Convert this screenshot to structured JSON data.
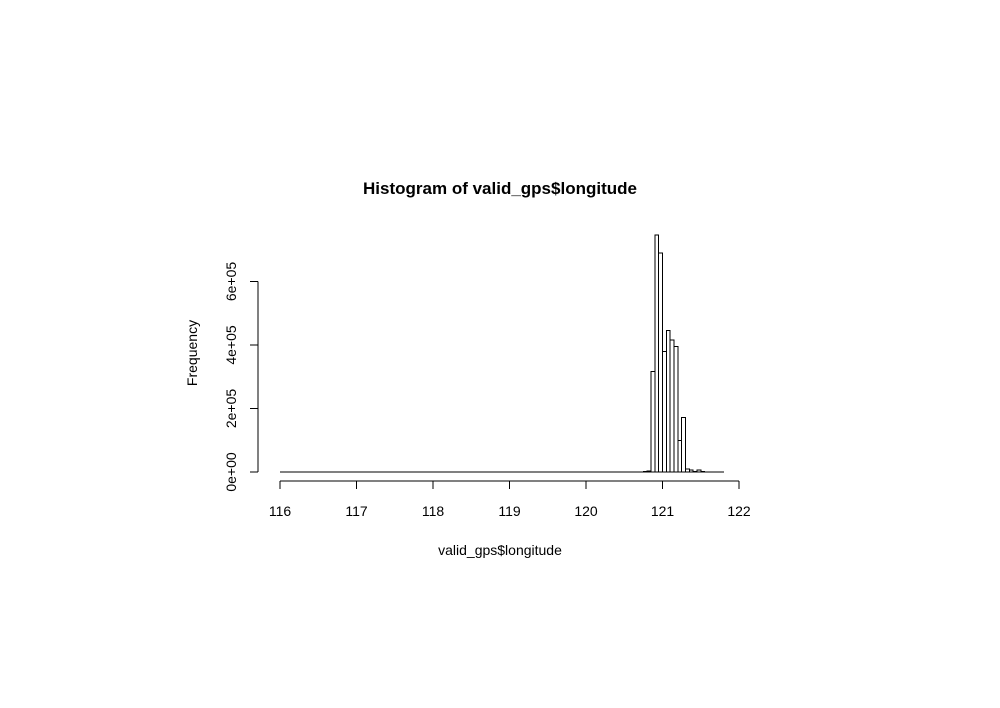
{
  "chart_data": {
    "type": "bar",
    "subtype": "histogram",
    "title": "Histogram of valid_gps$longitude",
    "xlabel": "valid_gps$longitude",
    "ylabel": "Frequency",
    "xlim": [
      116,
      122
    ],
    "ylim": [
      0,
      700000
    ],
    "x_ticks": [
      116,
      117,
      118,
      119,
      120,
      121,
      122
    ],
    "x_tick_labels": [
      "116",
      "117",
      "118",
      "119",
      "120",
      "121",
      "122"
    ],
    "y_ticks": [
      0,
      200000,
      400000,
      600000
    ],
    "y_tick_labels": [
      "0e+00",
      "2e+05",
      "4e+05",
      "6e+05"
    ],
    "grid": false,
    "bin_width": 0.05,
    "bin_start": 116.0,
    "bin_end": 121.8,
    "bins": [
      {
        "start": 120.7,
        "end": 120.75,
        "value": 300
      },
      {
        "start": 120.75,
        "end": 120.8,
        "value": 800
      },
      {
        "start": 120.8,
        "end": 120.85,
        "value": 3000
      },
      {
        "start": 120.85,
        "end": 120.9,
        "value": 317000
      },
      {
        "start": 120.9,
        "end": 120.95,
        "value": 747000
      },
      {
        "start": 120.95,
        "end": 121.0,
        "value": 690000
      },
      {
        "start": 121.0,
        "end": 121.05,
        "value": 380000
      },
      {
        "start": 121.05,
        "end": 121.1,
        "value": 445000
      },
      {
        "start": 121.1,
        "end": 121.15,
        "value": 415000
      },
      {
        "start": 121.15,
        "end": 121.2,
        "value": 395000
      },
      {
        "start": 121.2,
        "end": 121.25,
        "value": 99000
      },
      {
        "start": 121.25,
        "end": 121.3,
        "value": 172000
      },
      {
        "start": 121.3,
        "end": 121.35,
        "value": 9000
      },
      {
        "start": 121.35,
        "end": 121.4,
        "value": 7000
      },
      {
        "start": 121.4,
        "end": 121.45,
        "value": 2000
      },
      {
        "start": 121.45,
        "end": 121.5,
        "value": 6000
      },
      {
        "start": 121.5,
        "end": 121.55,
        "value": 1000
      },
      {
        "start": 121.55,
        "end": 121.6,
        "value": 500
      },
      {
        "start": 121.6,
        "end": 121.65,
        "value": 300
      },
      {
        "start": 121.65,
        "end": 121.7,
        "value": 200
      },
      {
        "start": 121.7,
        "end": 121.75,
        "value": 100
      },
      {
        "start": 121.75,
        "end": 121.8,
        "value": 100
      }
    ],
    "bar_fill": "#ffffff",
    "bar_stroke": "#000000"
  }
}
